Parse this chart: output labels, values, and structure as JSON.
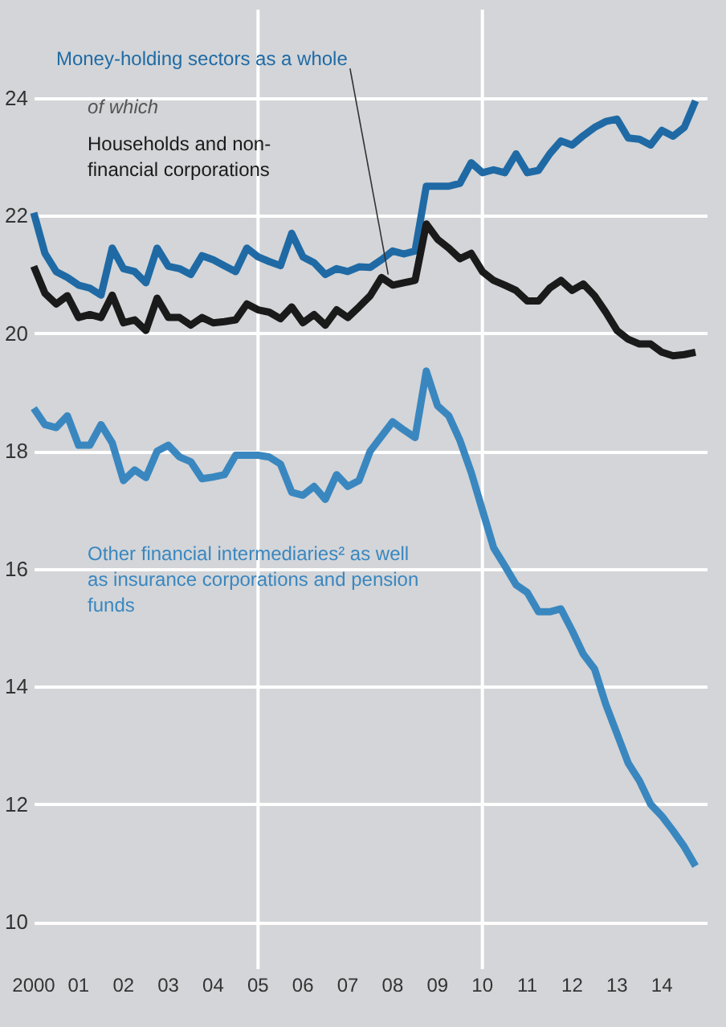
{
  "chart_data": {
    "type": "line",
    "x": [
      2000.0,
      2000.25,
      2000.5,
      2000.75,
      2001.0,
      2001.25,
      2001.5,
      2001.75,
      2002.0,
      2002.25,
      2002.5,
      2002.75,
      2003.0,
      2003.25,
      2003.5,
      2003.75,
      2004.0,
      2004.25,
      2004.5,
      2004.75,
      2005.0,
      2005.25,
      2005.5,
      2005.75,
      2006.0,
      2006.25,
      2006.5,
      2006.75,
      2007.0,
      2007.25,
      2007.5,
      2007.75,
      2008.0,
      2008.25,
      2008.5,
      2008.75,
      2009.0,
      2009.25,
      2009.5,
      2009.75,
      2010.0,
      2010.25,
      2010.5,
      2010.75,
      2011.0,
      2011.25,
      2011.5,
      2011.75,
      2012.0,
      2012.25,
      2012.5,
      2012.75,
      2013.0,
      2013.25,
      2013.5,
      2013.75,
      2014.0,
      2014.25,
      2014.5,
      2014.75
    ],
    "series": [
      {
        "name": "Money-holding sectors as a whole",
        "color": "#1f6aa5",
        "values": [
          22.05,
          21.36,
          21.05,
          20.95,
          20.82,
          20.77,
          20.65,
          21.45,
          21.1,
          21.05,
          20.86,
          21.45,
          21.14,
          21.1,
          21.0,
          21.32,
          21.25,
          21.15,
          21.05,
          21.45,
          21.3,
          21.22,
          21.15,
          21.7,
          21.3,
          21.2,
          21.0,
          21.1,
          21.05,
          21.13,
          21.12,
          21.25,
          21.4,
          21.35,
          21.4,
          22.5,
          22.5,
          22.5,
          22.55,
          22.9,
          22.73,
          22.78,
          22.73,
          23.05,
          22.73,
          22.77,
          23.05,
          23.27,
          23.2,
          23.36,
          23.5,
          23.6,
          23.64,
          23.32,
          23.3,
          23.2,
          23.45,
          23.35,
          23.5,
          23.95
        ]
      },
      {
        "name": "Households and non-financial corporations",
        "color": "#1a1a1a",
        "values": [
          21.14,
          20.68,
          20.5,
          20.64,
          20.27,
          20.32,
          20.27,
          20.65,
          20.18,
          20.23,
          20.05,
          20.6,
          20.27,
          20.27,
          20.14,
          20.27,
          20.18,
          20.2,
          20.23,
          20.5,
          20.4,
          20.36,
          20.25,
          20.45,
          20.18,
          20.32,
          20.14,
          20.4,
          20.27,
          20.45,
          20.64,
          20.95,
          20.82,
          20.86,
          20.9,
          21.86,
          21.6,
          21.45,
          21.27,
          21.36,
          21.05,
          20.9,
          20.82,
          20.73,
          20.55,
          20.55,
          20.77,
          20.9,
          20.73,
          20.84,
          20.64,
          20.36,
          20.05,
          19.9,
          19.82,
          19.82,
          19.68,
          19.62,
          19.64,
          19.68
        ]
      },
      {
        "name": "Other financial intermediaries² as well as insurance corporations and pension funds",
        "color": "#3a87c0",
        "values": [
          18.73,
          18.45,
          18.4,
          18.6,
          18.1,
          18.1,
          18.45,
          18.14,
          17.5,
          17.68,
          17.55,
          18.0,
          18.1,
          17.9,
          17.82,
          17.53,
          17.56,
          17.6,
          17.93,
          17.93,
          17.93,
          17.9,
          17.78,
          17.3,
          17.25,
          17.4,
          17.18,
          17.6,
          17.4,
          17.5,
          18.0,
          18.25,
          18.5,
          18.36,
          18.23,
          19.36,
          18.77,
          18.6,
          18.18,
          17.64,
          17.0,
          16.36,
          16.05,
          15.73,
          15.6,
          15.27,
          15.27,
          15.32,
          14.95,
          14.55,
          14.3,
          13.7,
          13.2,
          12.7,
          12.4,
          12.0,
          11.8,
          11.55,
          11.28,
          10.95
        ]
      }
    ],
    "annotations": [
      "of which"
    ],
    "xlim": [
      2000,
      2015
    ],
    "xticks": [
      2000,
      {
        "value": 2001,
        "label": "01"
      },
      {
        "value": 2002,
        "label": "02"
      },
      {
        "value": 2003,
        "label": "03"
      },
      {
        "value": 2004,
        "label": "04"
      },
      {
        "value": 2005,
        "label": "05"
      },
      {
        "value": 2006,
        "label": "06"
      },
      {
        "value": 2007,
        "label": "07"
      },
      {
        "value": 2008,
        "label": "08"
      },
      {
        "value": 2009,
        "label": "09"
      },
      {
        "value": 2010,
        "label": "10"
      },
      {
        "value": 2011,
        "label": "11"
      },
      {
        "value": 2012,
        "label": "12"
      },
      {
        "value": 2013,
        "label": "13"
      },
      {
        "value": 2014,
        "label": "14"
      }
    ],
    "ylim": [
      9.2,
      25.5
    ],
    "yticks": [
      10,
      12,
      14,
      16,
      18,
      20,
      22,
      24
    ],
    "ref_lines": [
      {
        "axis": "x",
        "value": 2005,
        "color": "#ffffff"
      },
      {
        "axis": "x",
        "value": 2010,
        "color": "#ffffff"
      }
    ],
    "grid": "y",
    "line_style": "solid",
    "marker": "none"
  }
}
